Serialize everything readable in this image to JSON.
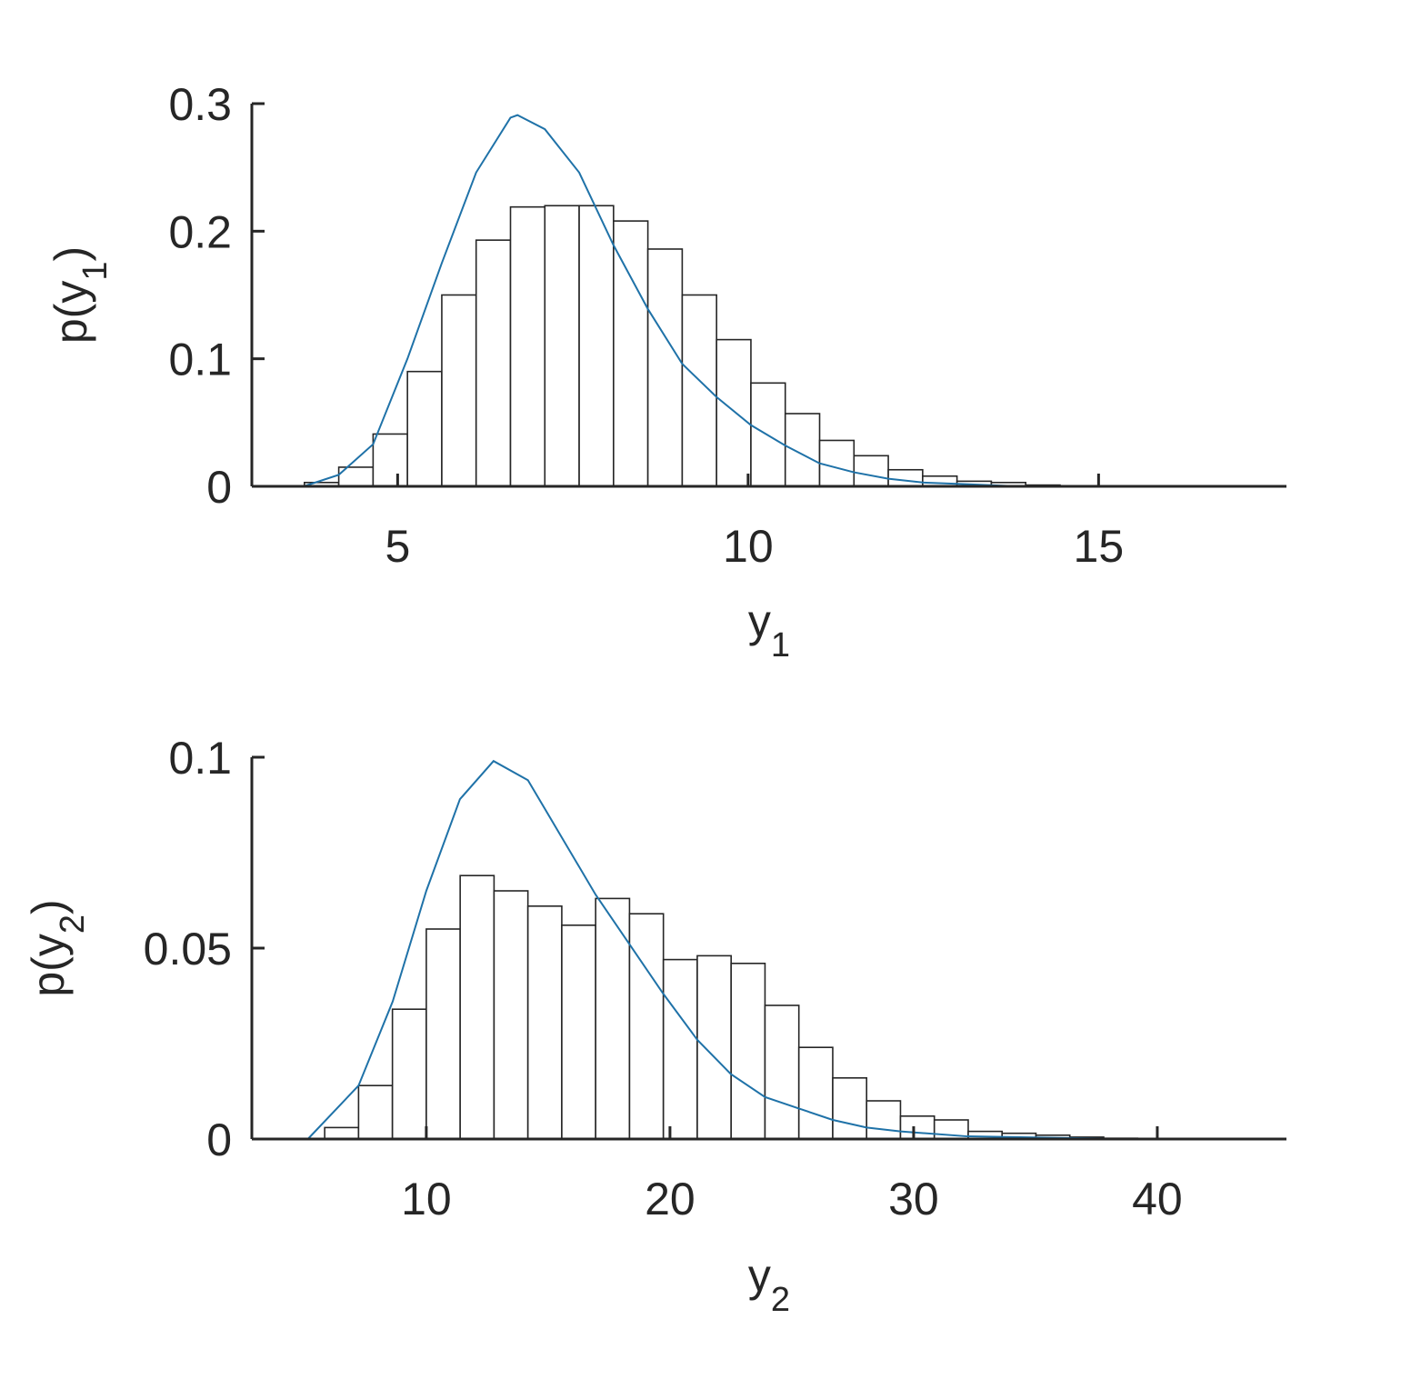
{
  "chart_data": [
    {
      "type": "histogram",
      "xlabel": {
        "text": "y",
        "subscript": "1"
      },
      "ylabel": {
        "before": "p(y",
        "subscript": "1",
        "after": ")"
      },
      "xlim": [
        2.92,
        17.68
      ],
      "ylim": [
        0,
        0.3
      ],
      "xticks": [
        5,
        10,
        15
      ],
      "yticks": [
        0,
        0.1,
        0.2,
        0.3
      ],
      "bar_color": "#ffffff",
      "edge_color": "#262626",
      "bins": [
        3.67,
        4.16,
        4.65,
        5.14,
        5.63,
        6.12,
        6.61,
        7.1,
        7.59,
        8.08,
        8.57,
        9.06,
        9.55,
        10.04,
        10.53,
        11.02,
        11.51,
        12.0,
        12.49,
        12.98,
        13.47,
        13.96,
        14.45
      ],
      "values": [
        0.003,
        0.015,
        0.041,
        0.09,
        0.15,
        0.193,
        0.219,
        0.22,
        0.22,
        0.208,
        0.186,
        0.15,
        0.115,
        0.081,
        0.057,
        0.036,
        0.024,
        0.013,
        0.008,
        0.004,
        0.003,
        0.001
      ],
      "curve": {
        "color": "#1f72a8",
        "x": [
          3.66,
          4.16,
          4.65,
          5.14,
          5.63,
          6.12,
          6.61,
          6.71,
          7.1,
          7.59,
          8.08,
          8.57,
          9.06,
          9.55,
          10.04,
          10.53,
          11.02,
          11.51,
          12.0,
          12.49,
          12.98,
          13.86
        ],
        "values": [
          0.0,
          0.009,
          0.033,
          0.1,
          0.175,
          0.246,
          0.289,
          0.291,
          0.28,
          0.246,
          0.189,
          0.139,
          0.096,
          0.07,
          0.048,
          0.032,
          0.018,
          0.011,
          0.006,
          0.003,
          0.002,
          0.0
        ]
      }
    },
    {
      "type": "histogram",
      "xlabel": {
        "text": "y",
        "subscript": "2"
      },
      "ylabel": {
        "before": "p(y",
        "subscript": "2",
        "after": ")"
      },
      "xlim": [
        2.84,
        45.3
      ],
      "ylim": [
        0,
        0.1
      ],
      "xticks": [
        10,
        20,
        30,
        40
      ],
      "yticks": [
        0,
        0.05,
        0.1
      ],
      "bar_color": "#ffffff",
      "edge_color": "#262626",
      "bins": [
        5.83,
        7.22,
        8.61,
        10.0,
        11.39,
        12.78,
        14.17,
        15.56,
        16.95,
        18.34,
        19.73,
        21.12,
        22.51,
        23.9,
        25.29,
        26.68,
        28.07,
        29.46,
        30.85,
        32.24,
        33.63,
        35.02,
        36.41,
        37.8,
        39.19
      ],
      "values": [
        0.003,
        0.014,
        0.034,
        0.055,
        0.069,
        0.065,
        0.061,
        0.056,
        0.063,
        0.059,
        0.047,
        0.048,
        0.046,
        0.035,
        0.024,
        0.016,
        0.01,
        0.006,
        0.005,
        0.002,
        0.0015,
        0.001,
        0.0005,
        0.0002
      ],
      "curve": {
        "color": "#1f72a8",
        "x": [
          5.14,
          7.22,
          8.62,
          10.0,
          11.38,
          12.76,
          14.17,
          15.56,
          16.95,
          18.34,
          19.73,
          21.12,
          22.5,
          23.9,
          25.29,
          26.68,
          28.07,
          29.46,
          32.2,
          39.1
        ],
        "values": [
          0.0,
          0.014,
          0.036,
          0.065,
          0.089,
          0.099,
          0.094,
          0.079,
          0.064,
          0.051,
          0.038,
          0.026,
          0.017,
          0.011,
          0.008,
          0.005,
          0.003,
          0.002,
          0.0007,
          0.0
        ]
      }
    }
  ]
}
